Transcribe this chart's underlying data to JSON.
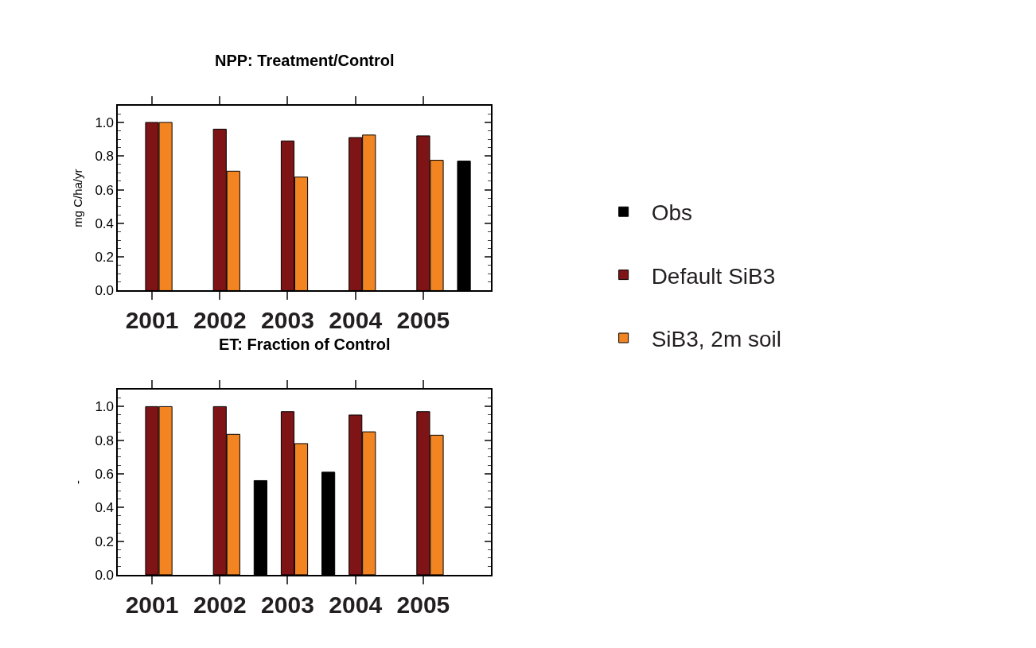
{
  "chart_data": [
    {
      "type": "bar",
      "title": "NPP: Treatment/Control",
      "ylabel": "mg C/ha/yr",
      "xlim": [
        2000.5,
        2006
      ],
      "xticks": [
        2001,
        2002,
        2003,
        2004,
        2005
      ],
      "ylim": [
        0,
        1.1
      ],
      "yticks": [
        {
          "value": 0,
          "label": "0.0"
        },
        {
          "value": 0.2,
          "label": "0.2"
        },
        {
          "value": 0.4,
          "label": "0.4"
        },
        {
          "value": 0.6,
          "label": "0.6"
        },
        {
          "value": 0.8,
          "label": "0.8"
        },
        {
          "value": 1.0,
          "label": "1.0"
        }
      ],
      "legend": "right",
      "series": [
        {
          "name": "Obs",
          "color": "#000000",
          "x": [
            2005.6
          ],
          "values": [
            0.77
          ]
        },
        {
          "name": "Default SiB3",
          "color": "#7f1416",
          "x": [
            2001,
            2002,
            2003,
            2004,
            2005
          ],
          "values": [
            1.0,
            0.96,
            0.89,
            0.91,
            0.92
          ]
        },
        {
          "name": "SiB3, 2m soil",
          "color": "#f28522",
          "x": [
            2001.2,
            2002.2,
            2003.2,
            2004.2,
            2005.2
          ],
          "values": [
            1.0,
            0.71,
            0.675,
            0.925,
            0.775
          ]
        }
      ]
    },
    {
      "type": "bar",
      "title": "ET: Fraction of Control",
      "ylabel": "-",
      "xlim": [
        2000.5,
        2006
      ],
      "xticks": [
        2001,
        2002,
        2003,
        2004,
        2005
      ],
      "ylim": [
        0,
        1.1
      ],
      "yticks": [
        {
          "value": 0,
          "label": "0.0"
        },
        {
          "value": 0.2,
          "label": "0.2"
        },
        {
          "value": 0.4,
          "label": "0.4"
        },
        {
          "value": 0.6,
          "label": "0.6"
        },
        {
          "value": 0.8,
          "label": "0.8"
        },
        {
          "value": 1.0,
          "label": "1.0"
        }
      ],
      "series": [
        {
          "color": "#000000",
          "x": [
            2002.6,
            2003.6
          ],
          "values": [
            0.56,
            0.61
          ]
        },
        {
          "color": "#7f1416",
          "x": [
            2001,
            2002,
            2003,
            2004,
            2005
          ],
          "values": [
            1.0,
            1.0,
            0.97,
            0.95,
            0.97
          ]
        },
        {
          "color": "#f28522",
          "x": [
            2001.2,
            2002.2,
            2003.2,
            2004.2,
            2005.2
          ],
          "values": [
            1.0,
            0.835,
            0.78,
            0.85,
            0.83
          ]
        }
      ]
    }
  ]
}
